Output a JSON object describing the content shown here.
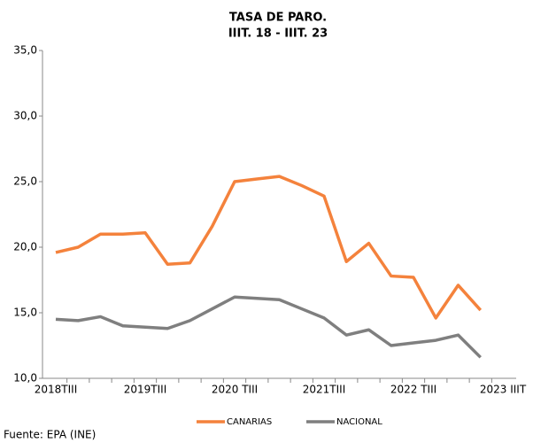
{
  "chart_data": {
    "type": "line",
    "title": "TASA DE PARO.",
    "subtitle": "IIIT. 18 - IIIT. 23",
    "categories": [
      "2018TIII",
      null,
      null,
      null,
      "2019TIII",
      null,
      null,
      null,
      "2020 TIII",
      null,
      null,
      null,
      "2021TIII",
      null,
      null,
      null,
      "2022 TIII",
      null,
      null,
      null,
      "2023 IIIT"
    ],
    "series": [
      {
        "name": "CANARIAS",
        "color": "#f4823c",
        "values": [
          19.6,
          20.0,
          21.0,
          21.0,
          21.1,
          18.7,
          18.8,
          21.6,
          25.0,
          25.2,
          25.4,
          24.7,
          23.9,
          18.9,
          20.3,
          17.8,
          17.7,
          14.6,
          17.1,
          15.2,
          null
        ]
      },
      {
        "name": "NACIONAL",
        "color": "#7f7f7f",
        "values": [
          14.5,
          14.4,
          14.7,
          14.0,
          13.9,
          13.8,
          14.4,
          15.3,
          16.2,
          16.1,
          16.0,
          15.3,
          14.6,
          13.3,
          13.7,
          12.5,
          12.7,
          12.9,
          13.3,
          11.6,
          null
        ]
      }
    ],
    "ylim": [
      10,
      35
    ],
    "yticks": [
      {
        "value": 10,
        "label": "10,0"
      },
      {
        "value": 15,
        "label": "15,0"
      },
      {
        "value": 20,
        "label": "20,0"
      },
      {
        "value": 25,
        "label": "25,0"
      },
      {
        "value": 30,
        "label": "30,0"
      },
      {
        "value": 35,
        "label": "35,0"
      }
    ],
    "grid": false,
    "legend": "bottom",
    "source": "Fuente: EPA (INE)"
  }
}
